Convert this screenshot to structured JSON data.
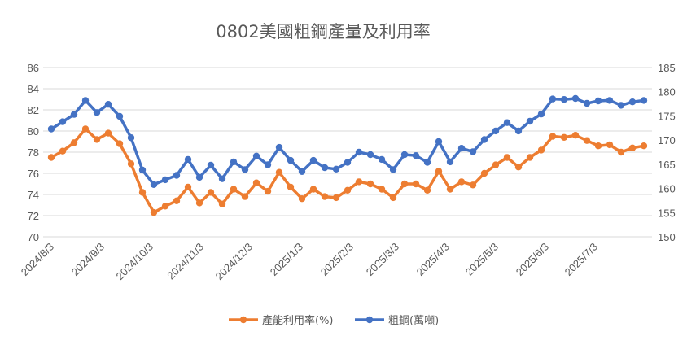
{
  "chart_data": {
    "type": "line",
    "title": "0802美國粗鋼產量及利用率",
    "x": [
      "2024/8/3",
      "2024/8/10",
      "2024/8/17",
      "2024/8/24",
      "2024/8/31",
      "2024/9/7",
      "2024/9/14",
      "2024/9/21",
      "2024/9/28",
      "2024/10/5",
      "2024/10/12",
      "2024/10/19",
      "2024/10/26",
      "2024/11/2",
      "2024/11/9",
      "2024/11/16",
      "2024/11/23",
      "2024/11/30",
      "2024/12/7",
      "2024/12/14",
      "2024/12/21",
      "2024/12/28",
      "2025/1/4",
      "2025/1/11",
      "2025/1/18",
      "2025/1/25",
      "2025/2/1",
      "2025/2/8",
      "2025/2/15",
      "2025/2/22",
      "2025/3/1",
      "2025/3/8",
      "2025/3/15",
      "2025/3/22",
      "2025/3/29",
      "2025/4/5",
      "2025/4/12",
      "2025/4/19",
      "2025/4/26",
      "2025/5/3",
      "2025/5/10",
      "2025/5/17",
      "2025/5/24",
      "2025/5/31",
      "2025/6/7",
      "2025/6/14",
      "2025/6/21",
      "2025/6/28",
      "2025/7/5",
      "2025/7/12",
      "2025/7/19",
      "2025/7/26",
      "2025/8/2"
    ],
    "x_tick_labels": [
      "2024/8/3",
      "2024/9/3",
      "2024/10/3",
      "2024/11/3",
      "2024/12/3",
      "2025/1/3",
      "2025/2/3",
      "2025/3/3",
      "2025/4/3",
      "2025/5/3",
      "2025/6/3",
      "2025/7/3"
    ],
    "x_tick_positions": [
      0,
      4.43,
      8.71,
      13.14,
      17.43,
      21.86,
      26.29,
      30.29,
      34.71,
      39.0,
      43.43,
      47.71
    ],
    "y_left": {
      "ylim": [
        70,
        86
      ],
      "ticks": [
        70,
        72,
        74,
        76,
        78,
        80,
        82,
        84,
        86
      ]
    },
    "y_right": {
      "ylim": [
        150,
        185
      ],
      "ticks": [
        150,
        155,
        160,
        165,
        170,
        175,
        180,
        185
      ]
    },
    "legend_position": "bottom",
    "series": [
      {
        "name": "產能利用率(%)",
        "axis": "left",
        "color": "#ED7D31",
        "values": [
          77.5,
          78.1,
          78.9,
          80.2,
          79.2,
          79.8,
          78.8,
          76.9,
          74.2,
          72.3,
          72.9,
          73.4,
          74.7,
          73.2,
          74.2,
          73.1,
          74.5,
          73.8,
          75.1,
          74.3,
          76.1,
          74.7,
          73.6,
          74.5,
          73.8,
          73.7,
          74.4,
          75.2,
          75.0,
          74.5,
          73.7,
          75.0,
          75.0,
          74.4,
          76.2,
          74.5,
          75.2,
          74.9,
          76.0,
          76.8,
          77.5,
          76.6,
          77.5,
          78.2,
          79.5,
          79.4,
          79.6,
          79.1,
          78.6,
          78.7,
          78.0,
          78.4,
          78.6
        ]
      },
      {
        "name": "粗鋼(萬噸)",
        "axis": "right",
        "color": "#4472C4",
        "values": [
          172.3,
          173.8,
          175.3,
          178.2,
          175.7,
          177.4,
          174.9,
          170.5,
          163.8,
          160.8,
          161.8,
          162.7,
          166.0,
          162.3,
          164.8,
          162.0,
          165.5,
          163.9,
          166.7,
          164.9,
          168.5,
          165.8,
          163.5,
          165.8,
          164.3,
          164.0,
          165.4,
          167.5,
          167.0,
          166.0,
          163.9,
          167.0,
          166.8,
          165.4,
          169.7,
          165.5,
          168.3,
          167.6,
          170.1,
          171.9,
          173.6,
          171.9,
          173.9,
          175.4,
          178.5,
          178.4,
          178.6,
          177.6,
          178.1,
          178.2,
          177.2,
          177.9,
          178.2
        ]
      }
    ]
  }
}
